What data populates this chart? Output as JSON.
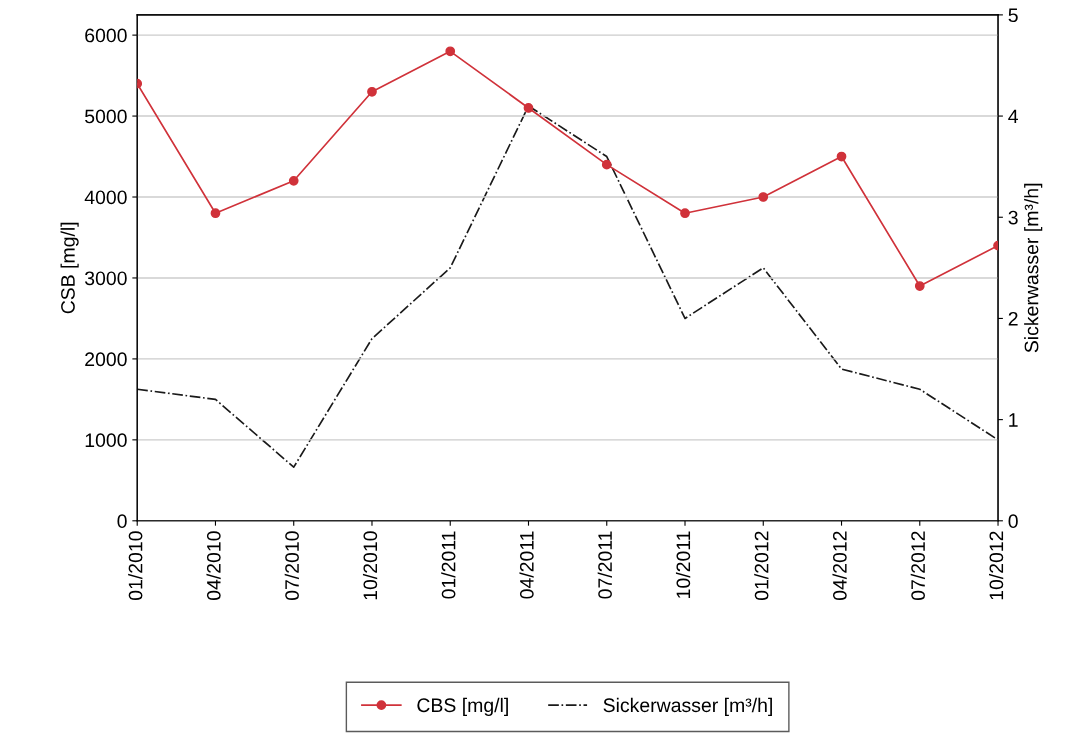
{
  "chart_data": {
    "type": "line",
    "ylabel": "CSB [mg/l]",
    "y2label": "Sickerwasser [m³/h]",
    "categories": [
      "01/2010",
      "04/2010",
      "07/2010",
      "10/2010",
      "01/2011",
      "04/2011",
      "07/2011",
      "10/2011",
      "01/2012",
      "04/2012",
      "07/2012",
      "10/2012"
    ],
    "series": [
      {
        "name": "CBS [mg/l]",
        "color": "#d0323a",
        "marker": "circle",
        "line_style": "solid",
        "values": [
          5400,
          3800,
          4200,
          5300,
          5800,
          5100,
          4400,
          3800,
          4000,
          4500,
          2900,
          3400
        ]
      },
      {
        "name": "Sickerwasser [m³/h]",
        "color": "#1a1a1a",
        "marker": "none",
        "line_style": "dashdot",
        "axis": "y2",
        "values": [
          1.3,
          1.2,
          0.53,
          1.8,
          2.5,
          4.1,
          3.6,
          2.0,
          2.5,
          1.5,
          1.3,
          0.8
        ]
      }
    ],
    "ylim": [
      0,
      6250
    ],
    "yticks": [
      0,
      1000,
      2000,
      3000,
      4000,
      5000,
      6000
    ],
    "y2lim": [
      0,
      5
    ],
    "y2ticks": [
      0,
      1,
      2,
      3,
      4,
      5
    ],
    "grid": "y",
    "legend": "bottom"
  }
}
